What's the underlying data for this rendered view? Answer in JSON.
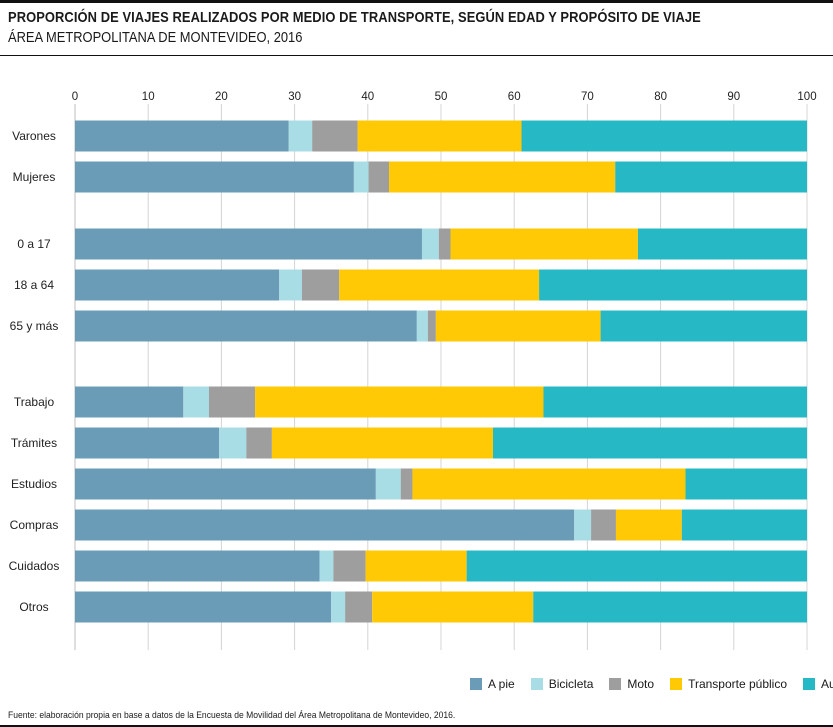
{
  "header": {
    "title": "PROPORCIÓN DE VIAJES REALIZADOS POR MEDIO DE TRANSPORTE, SEGÚN EDAD Y PROPÓSITO DE VIAJE",
    "subtitle": "ÁREA METROPOLITANA DE MONTEVIDEO, 2016"
  },
  "source": "Fuente: elaboración propia en base a datos de la Encuesta de Movilidad del Área Metropolitana de Montevideo, 2016.",
  "chart_data": {
    "type": "bar",
    "orientation": "horizontal",
    "stacked": true,
    "xlim": [
      0,
      100
    ],
    "xticks": [
      0,
      10,
      20,
      30,
      40,
      50,
      60,
      70,
      80,
      90,
      100
    ],
    "grid": true,
    "legend_position": "bottom-right",
    "groups": [
      [
        "Varones",
        "Mujeres"
      ],
      [
        "0 a 17",
        "18 a 64",
        "65 y más"
      ],
      [
        "Trabajo",
        "Trámites",
        "Estudios",
        "Compras",
        "Cuidados",
        "Otros"
      ]
    ],
    "categories": [
      "Varones",
      "Mujeres",
      "0 a 17",
      "18 a 64",
      "65 y más",
      "Trabajo",
      "Trámites",
      "Estudios",
      "Compras",
      "Cuidados",
      "Otros"
    ],
    "series": [
      {
        "name": "A pie",
        "color": "#6a9cb8",
        "values": [
          29.2,
          38.1,
          47.4,
          27.9,
          46.7,
          14.8,
          19.7,
          41.1,
          68.2,
          33.4,
          35.0
        ]
      },
      {
        "name": "Bicicleta",
        "color": "#a8dde6",
        "values": [
          3.2,
          2.0,
          2.3,
          3.1,
          1.5,
          3.5,
          3.7,
          3.4,
          2.3,
          1.9,
          1.9
        ]
      },
      {
        "name": "Moto",
        "color": "#9e9e9e",
        "values": [
          6.2,
          2.8,
          1.6,
          5.1,
          1.1,
          6.3,
          3.5,
          1.6,
          3.4,
          4.4,
          3.7
        ]
      },
      {
        "name": "Transporte público",
        "color": "#ffca05",
        "values": [
          22.4,
          30.9,
          25.6,
          27.3,
          22.5,
          39.4,
          30.2,
          37.3,
          9.0,
          13.8,
          22.0
        ]
      },
      {
        "name": "Auto",
        "color": "#27b8c6",
        "values": [
          39.0,
          26.2,
          23.1,
          36.6,
          28.2,
          36.0,
          42.9,
          16.6,
          17.1,
          46.5,
          37.4
        ]
      }
    ]
  }
}
